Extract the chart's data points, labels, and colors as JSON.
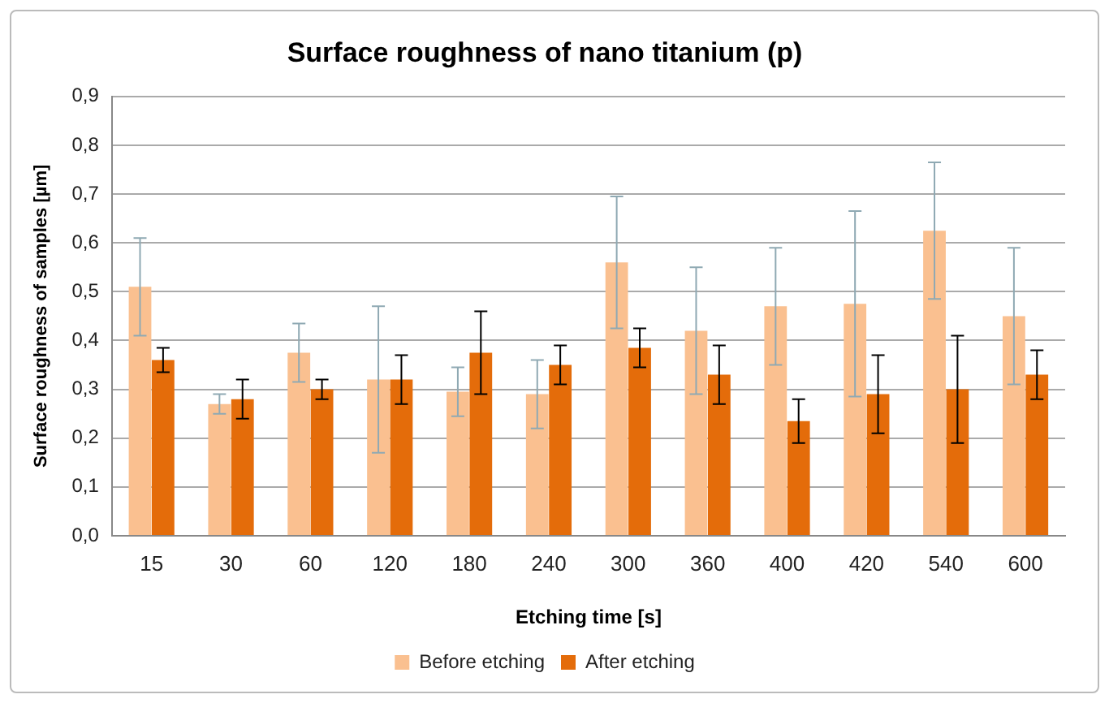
{
  "chart_data": {
    "type": "bar",
    "title": "Surface roughness of nano titanium (p)",
    "xlabel": "Etching time [s]",
    "ylabel": "Surface roughness of samples [µm]",
    "categories": [
      "15",
      "30",
      "60",
      "120",
      "180",
      "240",
      "300",
      "360",
      "400",
      "420",
      "540",
      "600"
    ],
    "series": [
      {
        "name": "Before etching",
        "color": "#fac090",
        "values": [
          0.51,
          0.27,
          0.375,
          0.32,
          0.295,
          0.29,
          0.56,
          0.42,
          0.47,
          0.475,
          0.625,
          0.45
        ],
        "errors": [
          0.1,
          0.02,
          0.06,
          0.15,
          0.05,
          0.07,
          0.135,
          0.13,
          0.12,
          0.19,
          0.14,
          0.14
        ]
      },
      {
        "name": "After etching",
        "color": "#e46c0a",
        "values": [
          0.36,
          0.28,
          0.3,
          0.32,
          0.375,
          0.35,
          0.385,
          0.33,
          0.235,
          0.29,
          0.3,
          0.33
        ],
        "errors": [
          0.025,
          0.04,
          0.02,
          0.05,
          0.085,
          0.04,
          0.04,
          0.06,
          0.045,
          0.08,
          0.11,
          0.05
        ]
      }
    ],
    "ylim": [
      0,
      0.9
    ],
    "yticks": [
      {
        "value": 0,
        "label": "0,0"
      },
      {
        "value": 0.1,
        "label": "0,1"
      },
      {
        "value": 0.2,
        "label": "0,2"
      },
      {
        "value": 0.3,
        "label": "0,3"
      },
      {
        "value": 0.4,
        "label": "0,4"
      },
      {
        "value": 0.5,
        "label": "0,5"
      },
      {
        "value": 0.6,
        "label": "0,6"
      },
      {
        "value": 0.7,
        "label": "0,7"
      },
      {
        "value": 0.8,
        "label": "0,8"
      },
      {
        "value": 0.9,
        "label": "0,9"
      }
    ],
    "grid": "y",
    "legend": "bottom"
  }
}
